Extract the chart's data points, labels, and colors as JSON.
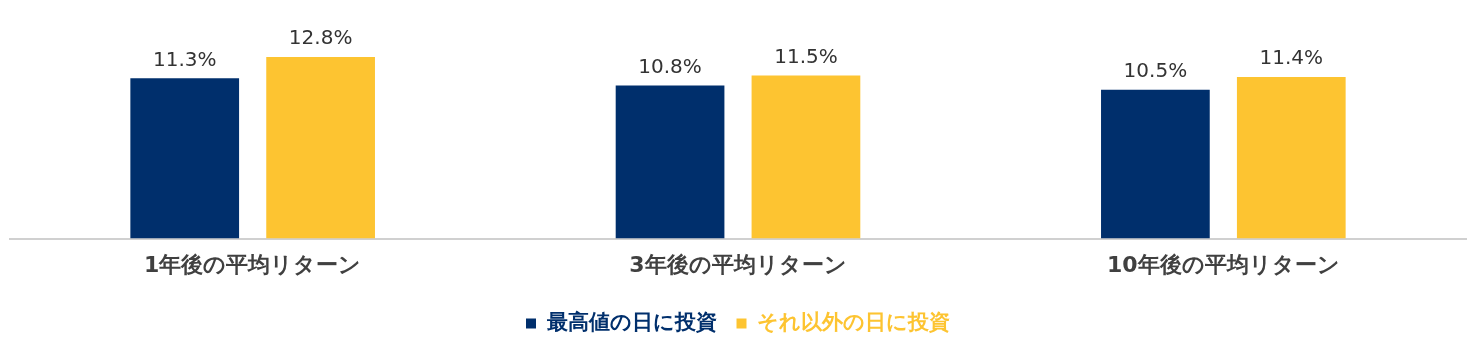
{
  "chart_data": {
    "type": "bar",
    "categories": [
      "1年後の平均リターン",
      "3年後の平均リターン",
      "10年後の平均リターン"
    ],
    "series": [
      {
        "name": "最高値の日に投資",
        "color": "#002f6c",
        "values": [
          11.3,
          10.8,
          10.5
        ],
        "value_labels": [
          "11.3%",
          "10.8%",
          "10.5%"
        ]
      },
      {
        "name": "それ以外の日に投資",
        "color": "#fdc431",
        "values": [
          12.8,
          11.5,
          11.4
        ],
        "value_labels": [
          "12.8%",
          "11.5%",
          "11.4%"
        ]
      }
    ],
    "grid": false,
    "legend": "bottom",
    "tick_labels": "x"
  }
}
